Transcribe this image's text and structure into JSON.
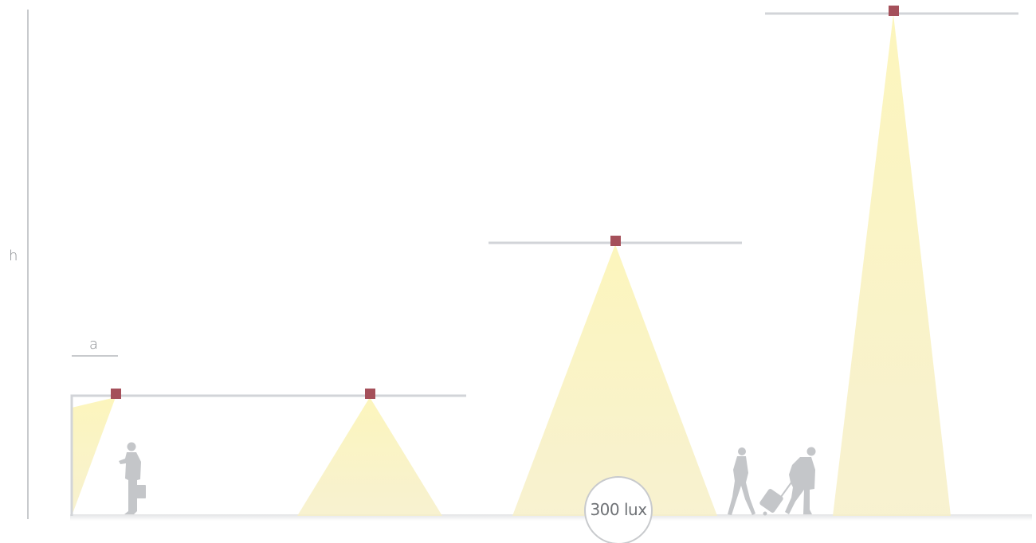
{
  "labels": {
    "height": "h",
    "spacing": "a",
    "illuminance": "300 lux"
  },
  "colors": {
    "beam": "#fbf3b6",
    "ceiling": "#d2d4d8",
    "luminaire": "#a5505a",
    "person": "#c4c6c9",
    "axis": "#c8cacd",
    "text": "#8a8d91"
  },
  "icons": {
    "luminaire": "square-luminaire-icon",
    "person_briefcase": "person-with-briefcase-icon",
    "person_walking": "walking-person-icon",
    "person_suitcase": "traveler-with-suitcase-icon"
  }
}
